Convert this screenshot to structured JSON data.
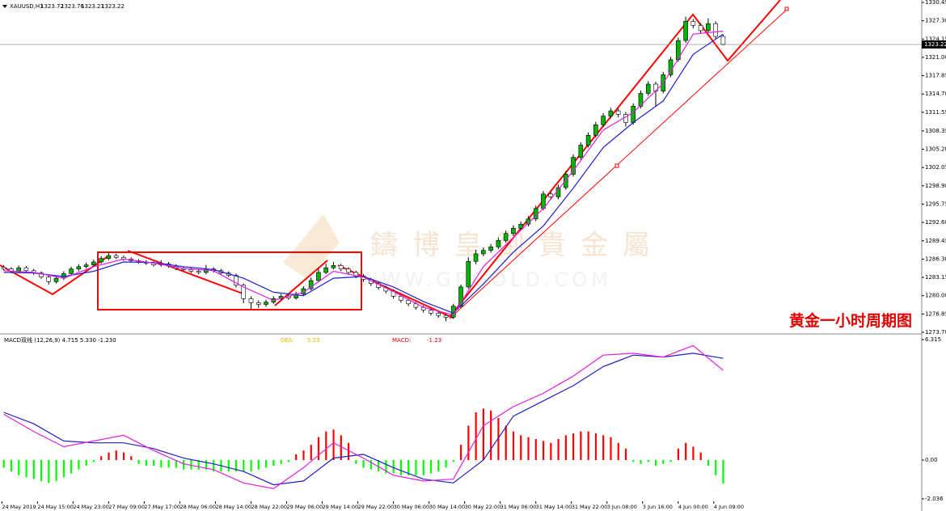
{
  "chart_data": [
    {
      "type": "candlestick",
      "title": "XAUUSD,H1",
      "ohlc_header": [
        1323.72,
        1323.76,
        1323.21,
        1323.22
      ],
      "annotation": "黄金一小时周期图",
      "watermark": "鑄博皇御貴金屬",
      "watermark_url": "WWW.GBGOLD.COM",
      "up_color": "#00b400",
      "down_color": "#ffffff",
      "last_price": 1323.22,
      "xlim": [
        -0.5,
        122.5
      ],
      "ylim": [
        1273.7,
        1330.45
      ],
      "yticks": [
        1330.45,
        {
          "value": 1327.3,
          "label": "1327.30"
        },
        1324.15,
        {
          "value": 1321.0,
          "label": "1321.00"
        },
        1317.85,
        {
          "value": 1314.7,
          "label": "1314.70"
        },
        1311.55,
        1308.35,
        {
          "value": 1305.2,
          "label": "1305.20"
        },
        1302.05,
        {
          "value": 1298.9,
          "label": "1298.90"
        },
        1295.75,
        {
          "value": 1292.6,
          "label": "1292.60"
        },
        1289.45,
        {
          "value": 1286.3,
          "label": "1286.30"
        },
        1283.15,
        {
          "value": 1280.0,
          "label": "1280.00"
        },
        1276.85,
        {
          "value": 1273.7,
          "label": "1273.70"
        }
      ],
      "candles": [
        [
          1284.9,
          1285.3,
          1284.3,
          1284.6
        ],
        [
          1284.6,
          1284.9,
          1283.9,
          1284.2
        ],
        [
          1284.2,
          1285.2,
          1283.9,
          1284.8
        ],
        [
          1284.8,
          1285.1,
          1284.0,
          1284.3
        ],
        [
          1284.3,
          1284.6,
          1283.6,
          1283.9
        ],
        [
          1283.9,
          1284.2,
          1282.9,
          1283.2
        ],
        [
          1283.2,
          1283.5,
          1281.9,
          1282.4
        ],
        [
          1282.4,
          1283.4,
          1282.1,
          1283.0
        ],
        [
          1283.0,
          1284.2,
          1282.7,
          1283.8
        ],
        [
          1283.8,
          1285.0,
          1283.5,
          1284.6
        ],
        [
          1284.6,
          1285.4,
          1284.2,
          1285.0
        ],
        [
          1285.0,
          1285.7,
          1284.7,
          1285.3
        ],
        [
          1285.3,
          1286.2,
          1285.0,
          1285.8
        ],
        [
          1285.8,
          1286.8,
          1285.5,
          1286.4
        ],
        [
          1286.4,
          1287.4,
          1286.1,
          1286.9
        ],
        [
          1286.9,
          1287.2,
          1286.3,
          1286.6
        ],
        [
          1286.6,
          1286.9,
          1286.0,
          1286.3
        ],
        [
          1286.3,
          1286.6,
          1285.7,
          1286.0
        ],
        [
          1286.0,
          1286.3,
          1285.5,
          1285.8
        ],
        [
          1285.8,
          1286.1,
          1285.3,
          1285.6
        ],
        [
          1285.6,
          1285.9,
          1285.0,
          1285.3
        ],
        [
          1285.3,
          1286.1,
          1285.0,
          1285.5
        ],
        [
          1285.5,
          1285.8,
          1284.8,
          1285.1
        ],
        [
          1285.1,
          1285.4,
          1284.4,
          1284.7
        ],
        [
          1284.7,
          1285.0,
          1284.2,
          1284.5
        ],
        [
          1284.5,
          1284.8,
          1283.9,
          1284.2
        ],
        [
          1284.2,
          1284.5,
          1283.7,
          1284.0
        ],
        [
          1284.0,
          1285.3,
          1283.7,
          1284.6
        ],
        [
          1284.6,
          1284.9,
          1284.0,
          1284.3
        ],
        [
          1284.3,
          1284.6,
          1283.6,
          1283.9
        ],
        [
          1283.9,
          1284.2,
          1283.2,
          1283.5
        ],
        [
          1283.5,
          1283.8,
          1281.4,
          1281.8
        ],
        [
          1281.8,
          1282.1,
          1278.7,
          1279.5
        ],
        [
          1279.5,
          1279.9,
          1277.6,
          1278.8
        ],
        [
          1278.8,
          1279.2,
          1277.9,
          1278.5
        ],
        [
          1278.5,
          1279.3,
          1278.1,
          1278.9
        ],
        [
          1278.9,
          1279.9,
          1278.6,
          1279.5
        ],
        [
          1279.5,
          1280.3,
          1279.2,
          1279.9
        ],
        [
          1279.9,
          1280.2,
          1279.3,
          1279.6
        ],
        [
          1279.6,
          1280.7,
          1279.3,
          1280.3
        ],
        [
          1280.3,
          1281.6,
          1280.0,
          1281.2
        ],
        [
          1281.2,
          1283.1,
          1280.9,
          1282.6
        ],
        [
          1282.6,
          1284.6,
          1282.3,
          1284.0
        ],
        [
          1284.0,
          1285.5,
          1283.7,
          1284.8
        ],
        [
          1284.8,
          1285.8,
          1284.5,
          1285.2
        ],
        [
          1285.2,
          1285.5,
          1284.2,
          1284.6
        ],
        [
          1284.6,
          1284.9,
          1283.6,
          1284.0
        ],
        [
          1284.0,
          1284.3,
          1283.0,
          1283.4
        ],
        [
          1283.4,
          1283.7,
          1282.4,
          1282.8
        ],
        [
          1282.8,
          1283.1,
          1281.7,
          1282.1
        ],
        [
          1282.1,
          1282.4,
          1281.0,
          1281.4
        ],
        [
          1281.4,
          1281.7,
          1280.4,
          1280.8
        ],
        [
          1280.8,
          1281.1,
          1279.5,
          1279.9
        ],
        [
          1279.9,
          1280.2,
          1278.8,
          1279.2
        ],
        [
          1279.2,
          1279.5,
          1278.2,
          1278.6
        ],
        [
          1278.6,
          1278.9,
          1277.6,
          1278.0
        ],
        [
          1278.0,
          1278.3,
          1277.1,
          1277.5
        ],
        [
          1277.5,
          1277.8,
          1276.6,
          1277.0
        ],
        [
          1277.0,
          1277.3,
          1276.2,
          1276.6
        ],
        [
          1276.6,
          1276.9,
          1275.6,
          1276.3
        ],
        [
          1276.3,
          1278.6,
          1276.0,
          1278.2
        ],
        [
          1278.2,
          1281.9,
          1277.9,
          1281.5
        ],
        [
          1281.5,
          1286.6,
          1281.2,
          1285.9
        ],
        [
          1285.9,
          1287.9,
          1285.4,
          1287.2
        ],
        [
          1287.2,
          1288.3,
          1286.8,
          1287.8
        ],
        [
          1287.8,
          1288.9,
          1287.4,
          1288.4
        ],
        [
          1288.4,
          1290.0,
          1288.0,
          1289.5
        ],
        [
          1289.5,
          1291.2,
          1289.1,
          1290.7
        ],
        [
          1290.7,
          1292.1,
          1290.3,
          1291.6
        ],
        [
          1291.6,
          1292.8,
          1291.2,
          1292.3
        ],
        [
          1292.3,
          1293.7,
          1291.9,
          1293.2
        ],
        [
          1293.2,
          1295.5,
          1292.8,
          1295.0
        ],
        [
          1295.0,
          1298.0,
          1294.7,
          1297.5
        ],
        [
          1297.5,
          1297.9,
          1296.5,
          1297.0
        ],
        [
          1297.0,
          1299.1,
          1296.6,
          1298.6
        ],
        [
          1298.6,
          1301.4,
          1298.2,
          1300.9
        ],
        [
          1300.9,
          1304.3,
          1300.5,
          1303.8
        ],
        [
          1303.8,
          1306.4,
          1303.4,
          1305.9
        ],
        [
          1305.9,
          1308.1,
          1305.5,
          1307.6
        ],
        [
          1307.6,
          1309.9,
          1307.2,
          1309.4
        ],
        [
          1309.4,
          1311.4,
          1309.0,
          1310.9
        ],
        [
          1310.9,
          1312.3,
          1310.5,
          1311.8
        ],
        [
          1311.8,
          1312.2,
          1310.7,
          1311.2
        ],
        [
          1311.2,
          1311.6,
          1309.1,
          1309.8
        ],
        [
          1309.8,
          1313.1,
          1309.4,
          1312.6
        ],
        [
          1312.6,
          1315.3,
          1312.2,
          1314.8
        ],
        [
          1314.8,
          1316.9,
          1314.4,
          1316.4
        ],
        [
          1316.4,
          1316.8,
          1312.6,
          1315.2
        ],
        [
          1315.2,
          1318.5,
          1314.8,
          1318.0
        ],
        [
          1318.0,
          1321.1,
          1317.6,
          1320.6
        ],
        [
          1320.6,
          1324.4,
          1320.2,
          1323.9
        ],
        [
          1323.9,
          1328.0,
          1323.5,
          1327.2
        ],
        [
          1327.2,
          1327.6,
          1326.0,
          1326.5
        ],
        [
          1326.5,
          1326.9,
          1325.1,
          1325.6
        ],
        [
          1325.6,
          1327.7,
          1325.2,
          1326.8
        ],
        [
          1326.8,
          1327.2,
          1324.2,
          1324.6
        ],
        [
          1324.6,
          1324.9,
          1323.1,
          1323.22
        ]
      ],
      "lines": [
        {
          "color": "#1f1fd0",
          "x": [
            0,
            4,
            8,
            12,
            16,
            20,
            24,
            28,
            32,
            36,
            40,
            44,
            48,
            52,
            56,
            60,
            64,
            68,
            72,
            76,
            80,
            84,
            88,
            92,
            96
          ],
          "values": [
            1284.0,
            1283.9,
            1283.3,
            1284.2,
            1285.8,
            1285.7,
            1285.0,
            1284.5,
            1283.0,
            1280.6,
            1280.0,
            1283.0,
            1283.3,
            1281.5,
            1279.0,
            1277.0,
            1282.0,
            1287.5,
            1292.0,
            1298.5,
            1305.5,
            1309.8,
            1313.5,
            1321.5,
            1325.0
          ]
        },
        {
          "color": "#e020e0",
          "x": [
            0,
            4,
            8,
            12,
            16,
            20,
            24,
            28,
            32,
            36,
            40,
            44,
            48,
            52,
            56,
            60,
            64,
            68,
            72,
            76,
            80,
            84,
            88,
            92,
            96
          ],
          "values": [
            1284.3,
            1284.0,
            1283.0,
            1285.0,
            1286.3,
            1285.6,
            1284.7,
            1284.3,
            1281.5,
            1279.2,
            1280.6,
            1284.2,
            1283.2,
            1280.7,
            1278.0,
            1276.7,
            1285.0,
            1290.0,
            1295.0,
            1301.5,
            1308.5,
            1311.5,
            1316.5,
            1325.0,
            1325.5
          ]
        }
      ]
    },
    {
      "type": "macd",
      "label": "MACD双线 (12,26,9) 4.715 5.330 -1.230",
      "dea_label": "DEA:",
      "dea": 5.33,
      "macd_label": "MACD:",
      "macd": -1.23,
      "up_color": "#ff0000",
      "down_color": "#00ff00",
      "xlim": [
        -0.5,
        122.5
      ],
      "ylim": [
        -2.036,
        6.315
      ],
      "yticks": [
        6.315,
        {
          "value": 0,
          "label": "0.00"
        },
        -2.036
      ],
      "xticks": [
        {
          "value": -0.25,
          "label": "24 May 2019"
        },
        {
          "value": 4.5,
          "label": "24 May 15:00"
        },
        {
          "value": 9.25,
          "label": "24 May 23:00"
        },
        {
          "value": 14,
          "label": "27 May 09:00"
        },
        {
          "value": 18.75,
          "label": "27 May 17:00"
        },
        {
          "value": 23.5,
          "label": "28 May 06:00"
        },
        {
          "value": 28.25,
          "label": "28 May 14:00"
        },
        {
          "value": 33,
          "label": "28 May 22:00"
        },
        {
          "value": 37.75,
          "label": "29 May 06:00"
        },
        {
          "value": 42.5,
          "label": "29 May 14:00"
        },
        {
          "value": 47.25,
          "label": "29 May 22:00"
        },
        {
          "value": 52,
          "label": "30 May 06:00"
        },
        {
          "value": 56.75,
          "label": "30 May 14:00"
        },
        {
          "value": 61.5,
          "label": "30 May 22:00"
        },
        {
          "value": 66.25,
          "label": "31 May 06:00"
        },
        {
          "value": 71,
          "label": "31 May 14:00"
        },
        {
          "value": 75.75,
          "label": "31 May 22:00"
        },
        {
          "value": 80.5,
          "label": "3 Jun 08:00"
        },
        {
          "value": 85.25,
          "label": "3 Jun 16:00"
        },
        {
          "value": 90,
          "label": "4 Jun 00:00"
        },
        {
          "value": 94.75,
          "label": "4 Jun 09:00"
        }
      ],
      "histogram": [
        -0.4,
        -0.6,
        -0.8,
        -0.9,
        -1.0,
        -1.1,
        -1.2,
        -1.1,
        -0.9,
        -0.7,
        -0.5,
        -0.3,
        -0.1,
        0.2,
        0.4,
        0.5,
        0.4,
        0.2,
        -0.2,
        -0.3,
        -0.3,
        -0.4,
        -0.4,
        -0.4,
        -0.5,
        -0.5,
        -0.5,
        -0.5,
        -0.6,
        -0.6,
        -0.6,
        -0.6,
        -0.6,
        -0.6,
        -0.5,
        -0.4,
        -0.3,
        -0.2,
        -0.1,
        0.3,
        0.5,
        0.8,
        1.2,
        1.5,
        1.6,
        1.3,
        0.9,
        -0.2,
        -0.4,
        -0.5,
        -0.6,
        -0.7,
        -0.7,
        -0.8,
        -0.8,
        -0.8,
        -0.8,
        -0.7,
        -0.6,
        -0.4,
        -0.1,
        0.8,
        1.8,
        2.5,
        2.7,
        2.6,
        2.2,
        1.8,
        1.5,
        1.3,
        1.2,
        1.1,
        1.0,
        0.9,
        1.1,
        1.3,
        1.4,
        1.5,
        1.5,
        1.4,
        1.3,
        1.2,
        0.9,
        0.6,
        -0.1,
        -0.2,
        -0.1,
        -0.3,
        -0.2,
        -0.1,
        0.6,
        0.9,
        0.7,
        0.4,
        -0.3,
        -0.8,
        -1.23
      ],
      "lines": [
        {
          "color": "#2020c0",
          "x": [
            0,
            4,
            8,
            12,
            16,
            20,
            24,
            28,
            32,
            36,
            40,
            44,
            48,
            52,
            56,
            60,
            64,
            68,
            72,
            76,
            80,
            84,
            88,
            92,
            96
          ],
          "values": [
            2.5,
            1.9,
            1.0,
            0.9,
            0.9,
            0.6,
            0.1,
            -0.2,
            -0.6,
            -1.3,
            -1.1,
            0.1,
            0.3,
            -0.4,
            -1.0,
            -1.2,
            0.0,
            2.3,
            3.1,
            3.9,
            4.9,
            5.5,
            5.4,
            5.6,
            5.33
          ]
        },
        {
          "color": "#e020e0",
          "x": [
            0,
            4,
            8,
            12,
            16,
            20,
            24,
            28,
            32,
            36,
            40,
            44,
            48,
            52,
            56,
            60,
            64,
            68,
            72,
            76,
            80,
            84,
            88,
            92,
            96
          ],
          "values": [
            2.4,
            1.5,
            0.7,
            1.0,
            1.3,
            0.5,
            -0.2,
            -0.5,
            -1.2,
            -1.5,
            -0.4,
            0.9,
            0.1,
            -0.8,
            -1.1,
            -1.0,
            1.8,
            2.8,
            3.5,
            4.4,
            5.5,
            5.6,
            5.4,
            6.0,
            4.7
          ]
        }
      ]
    }
  ]
}
